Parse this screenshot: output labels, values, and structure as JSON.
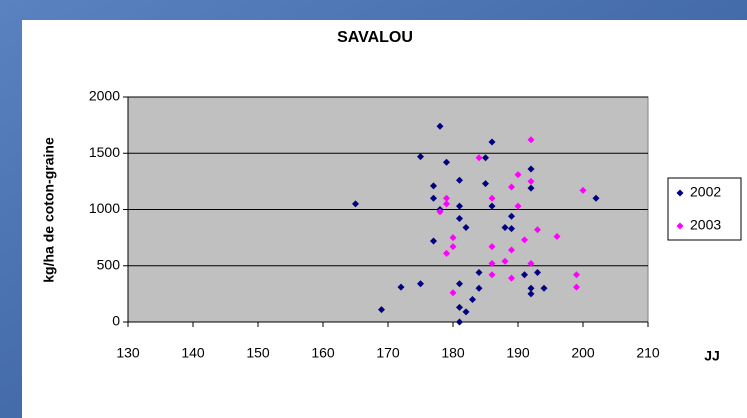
{
  "chart_data": {
    "type": "scatter",
    "title": "SAVALOU",
    "x_label": "JJ",
    "y_label": "kg/ha de coton-graine",
    "xlim": [
      130,
      210
    ],
    "xticks": [
      130,
      140,
      150,
      160,
      170,
      180,
      190,
      200,
      210
    ],
    "ylim": [
      0,
      2000
    ],
    "yticks": [
      0,
      500,
      1000,
      1500,
      2000
    ],
    "grid": true,
    "legend": "right",
    "series": [
      {
        "name": "2002",
        "color": "#000080",
        "x": [
          165,
          169,
          172,
          175,
          175,
          177,
          177,
          177,
          178,
          178,
          179,
          181,
          181,
          181,
          181,
          181,
          181,
          182,
          182,
          183,
          184,
          184,
          185,
          185,
          186,
          186,
          188,
          189,
          189,
          191,
          192,
          192,
          192,
          192,
          193,
          194,
          202
        ],
        "values": [
          1050,
          110,
          310,
          340,
          1470,
          1210,
          1100,
          720,
          1740,
          1000,
          1420,
          1260,
          1030,
          920,
          340,
          130,
          0,
          840,
          90,
          200,
          440,
          300,
          1460,
          1230,
          1600,
          1030,
          840,
          940,
          830,
          420,
          1360,
          1190,
          300,
          250,
          440,
          300,
          1100
        ]
      },
      {
        "name": "2003",
        "color": "#ff00ff",
        "x": [
          178,
          179,
          179,
          179,
          180,
          180,
          180,
          184,
          186,
          186,
          186,
          186,
          188,
          189,
          189,
          189,
          190,
          190,
          191,
          192,
          192,
          192,
          193,
          196,
          199,
          199,
          200
        ],
        "values": [
          980,
          1100,
          1050,
          610,
          750,
          670,
          260,
          1460,
          1100,
          670,
          520,
          420,
          540,
          1200,
          640,
          390,
          1310,
          1030,
          730,
          1620,
          1250,
          520,
          820,
          760,
          420,
          310,
          1170
        ]
      }
    ]
  }
}
